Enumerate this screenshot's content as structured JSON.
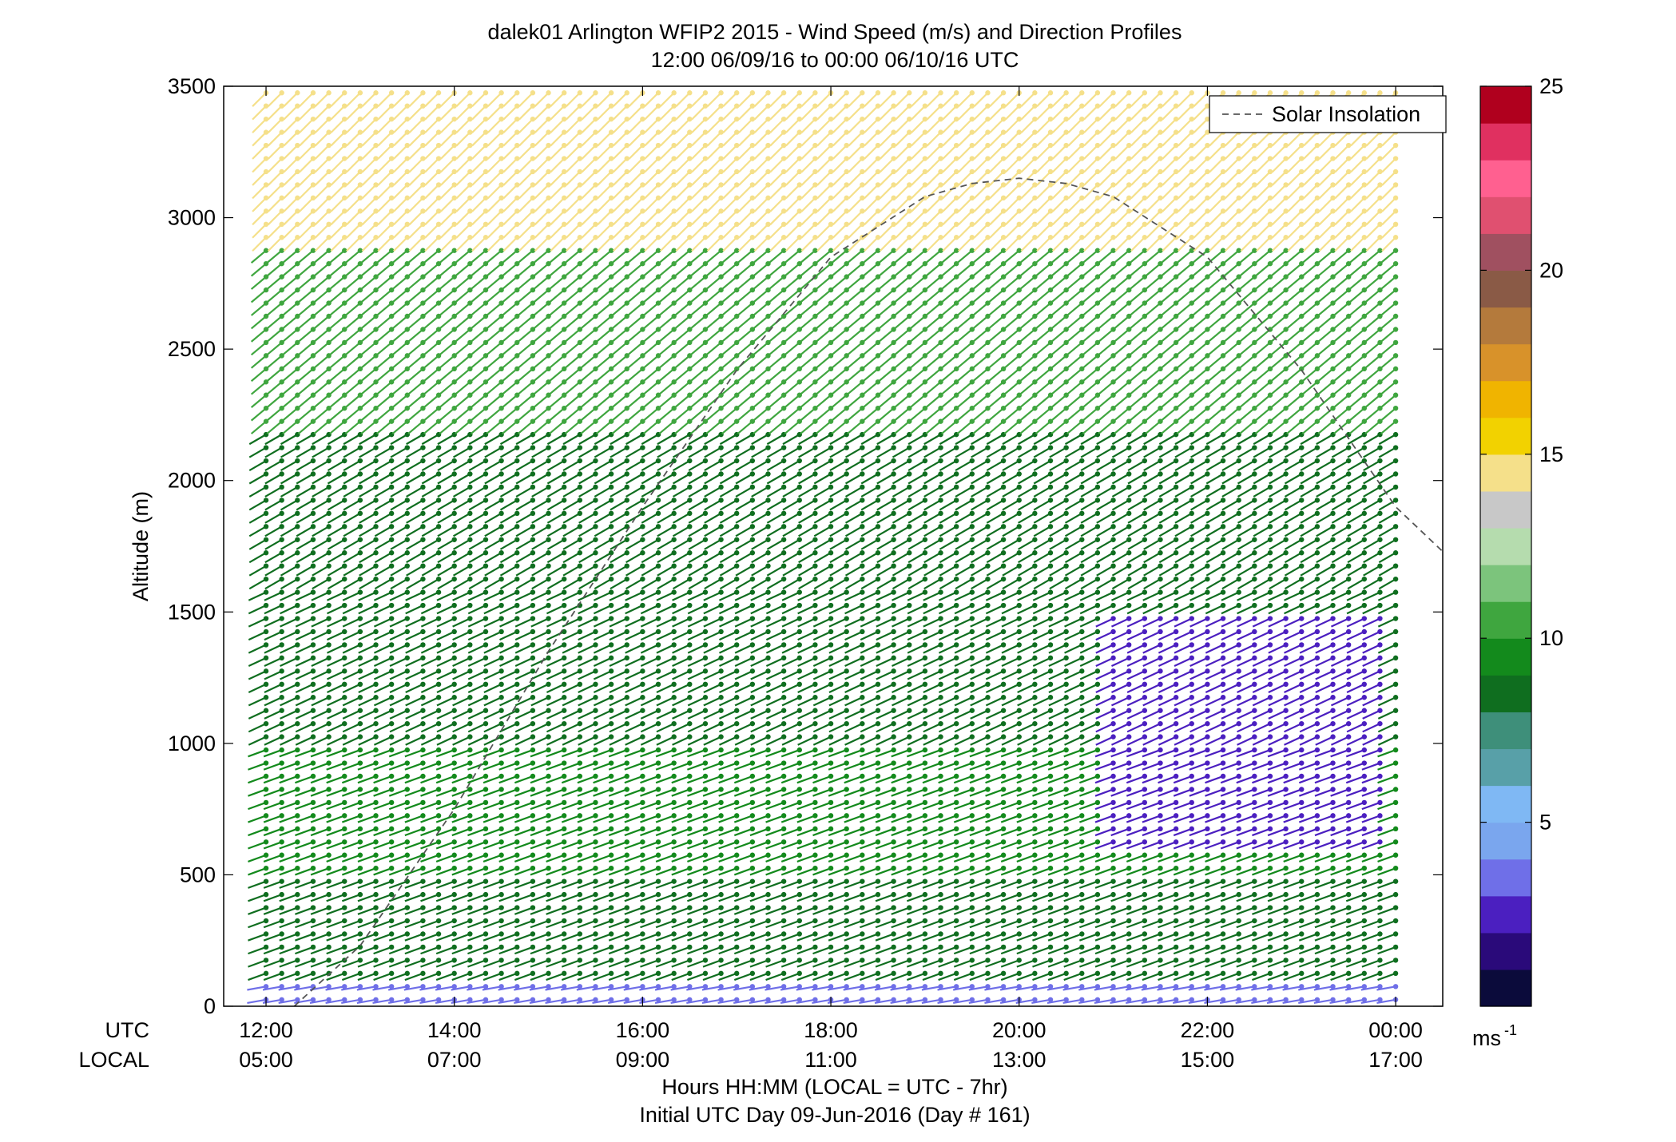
{
  "chart_data": {
    "type": "scatter",
    "title": "dalek01 Arlington WFIP2 2015 - Wind Speed (m/s) and Direction Profiles",
    "subtitle": "12:00 06/09/16 to 00:00 06/10/16  UTC",
    "ylabel": "Altitude (m)",
    "xlabel": "Hours HH:MM  (LOCAL = UTC - 7hr)",
    "xlabel2": "Initial UTC Day 09-Jun-2016 (Day # 161)",
    "utc_row_label": "UTC",
    "local_row_label": "LOCAL",
    "x_ticks_utc": [
      "12:00",
      "14:00",
      "16:00",
      "18:00",
      "20:00",
      "22:00",
      "00:00"
    ],
    "x_ticks_local": [
      "05:00",
      "07:00",
      "09:00",
      "11:00",
      "13:00",
      "15:00",
      "17:00"
    ],
    "x_tick_hours": [
      12,
      14,
      16,
      18,
      20,
      22,
      24
    ],
    "xlim_hours": [
      11.55,
      24.5
    ],
    "ylim": [
      0,
      3500
    ],
    "y_ticks": [
      0,
      500,
      1000,
      1500,
      2000,
      2500,
      3000,
      3500
    ],
    "colorbar": {
      "range": [
        0,
        25
      ],
      "ticks": [
        5,
        10,
        15,
        20,
        25
      ],
      "unit_label": "ms",
      "unit_exponent": "-1",
      "colors": [
        "#0b0b3b",
        "#2a0a7a",
        "#4b1fc0",
        "#6f6fe8",
        "#7aa6ee",
        "#7fb8f4",
        "#58a0a8",
        "#3e8f7a",
        "#0f6e1f",
        "#138a1c",
        "#3fa63f",
        "#7cc47c",
        "#b5dcae",
        "#c8c8c8",
        "#f5e08a",
        "#f2d200",
        "#f0b400",
        "#d8922a",
        "#b47a3c",
        "#8a5a46",
        "#a05060",
        "#e05070",
        "#ff6090",
        "#e03060",
        "#b0001e"
      ]
    },
    "legend": {
      "entries": [
        "Solar Insolation"
      ],
      "position": "top-right"
    },
    "solar_insolation_curve": {
      "style": "dashed",
      "color": "#555555",
      "x_hours": [
        12.3,
        13.0,
        14.0,
        15.0,
        16.0,
        17.0,
        18.0,
        19.0,
        19.5,
        20.0,
        20.5,
        21.0,
        22.0,
        23.0,
        24.0,
        24.5
      ],
      "y": [
        0,
        230,
        750,
        1350,
        1900,
        2420,
        2850,
        3080,
        3130,
        3150,
        3130,
        3080,
        2850,
        2420,
        1900,
        1730
      ]
    },
    "wind_profile_summary": {
      "profile_start_hour": 12.0,
      "profile_end_hour": 24.0,
      "profile_interval_min": 10,
      "range_gate_m": 50,
      "layers": [
        {
          "altitude_range_m": [
            0,
            80
          ],
          "speed_ms": 3.5,
          "direction_from_deg": 260
        },
        {
          "altitude_range_m": [
            80,
            500
          ],
          "speed_ms": 8,
          "direction_from_deg": 250
        },
        {
          "altitude_range_m": [
            500,
            1000
          ],
          "speed_ms": 9,
          "direction_from_deg": 250
        },
        {
          "altitude_range_m": [
            1000,
            1600
          ],
          "speed_ms": 8,
          "direction_from_deg": 245
        },
        {
          "altitude_range_m": [
            1600,
            2200
          ],
          "speed_ms": 8,
          "direction_from_deg": 240
        },
        {
          "altitude_range_m": [
            2200,
            2900
          ],
          "speed_ms": 10,
          "direction_from_deg": 230
        },
        {
          "altitude_range_m": [
            2900,
            3500
          ],
          "speed_ms": 14,
          "direction_from_deg": 225
        }
      ],
      "afternoon_low_speed_core": {
        "hour_range": [
          21.0,
          24.0
        ],
        "altitude_range_m": [
          600,
          1500
        ],
        "speed_ms": 2.5
      }
    }
  }
}
